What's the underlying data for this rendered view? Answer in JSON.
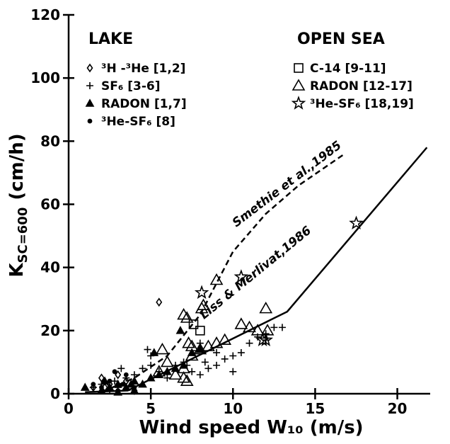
{
  "chart_data": {
    "type": "scatter",
    "x_label": "Wind speed W₁₀ (m/s)",
    "y_label": {
      "main": "K",
      "sub": "SC=600",
      "unit": "(cm/h)"
    },
    "xlim": [
      0,
      22
    ],
    "xticks": [
      0,
      5,
      10,
      15,
      20
    ],
    "ylim": [
      0,
      120
    ],
    "yticks": [
      0,
      20,
      40,
      60,
      80,
      100,
      120
    ],
    "legend_groups": [
      {
        "title": "LAKE"
      },
      {
        "title": "OPEN SEA"
      }
    ],
    "series": [
      {
        "name": "³H -³He [1,2]",
        "group": 0,
        "marker": "diamond",
        "color": "#000000",
        "x": [
          5.5,
          2,
          2.5,
          3,
          1.5,
          4,
          3.5,
          2.2
        ],
        "values": [
          29,
          5,
          3,
          6,
          2,
          1,
          4,
          2
        ]
      },
      {
        "name": "SF₆ [3-6]",
        "group": 0,
        "marker": "plus",
        "color": "#000000",
        "x": [
          1.5,
          2,
          2.5,
          3,
          3.5,
          4,
          4.5,
          5,
          5.5,
          6,
          6.5,
          7,
          7.5,
          8,
          8.5,
          9,
          9.5,
          10,
          10.5,
          11,
          11.5,
          12,
          12.5,
          13,
          12,
          8,
          9,
          5,
          4.8,
          3.2,
          2.8,
          7.2,
          8.3,
          10
        ],
        "values": [
          2,
          3,
          1,
          2,
          5,
          6,
          8,
          9,
          7,
          5,
          9,
          10,
          7,
          6,
          8,
          9,
          11,
          12,
          13,
          16,
          18,
          19,
          21,
          21,
          17,
          16,
          13,
          12,
          14,
          8,
          4,
          9,
          10,
          7
        ]
      },
      {
        "name": "RADON [1,7]",
        "group": 0,
        "marker": "triangle-filled",
        "color": "#000000",
        "x": [
          1,
          2,
          2.5,
          3,
          3.5,
          4,
          4.5,
          5,
          5.5,
          6,
          6.5,
          7,
          7.5,
          8,
          5.2,
          6.8,
          4,
          3,
          2.2,
          3.8
        ],
        "values": [
          2,
          1,
          2,
          3,
          2,
          4,
          3,
          5,
          6,
          7,
          8,
          9,
          13,
          14,
          13,
          20,
          1,
          0.5,
          4,
          3
        ]
      },
      {
        "name": "³He-SF₆ [8]",
        "group": 0,
        "marker": "dot",
        "color": "#000000",
        "x": [
          1.5,
          2,
          2.5,
          3,
          3.5,
          4,
          2.8,
          3.3
        ],
        "values": [
          3,
          2,
          4,
          1,
          6,
          2,
          7,
          3
        ]
      },
      {
        "name": "C-14 [9-11]",
        "group": 1,
        "marker": "square",
        "color": "#000000",
        "x": [
          7.6,
          8
        ],
        "values": [
          22,
          20
        ]
      },
      {
        "name": "RADON [12-17]",
        "group": 1,
        "marker": "triangle",
        "color": "#000000",
        "x": [
          7,
          7.2,
          8.2,
          8.1,
          9,
          7,
          7.2,
          7.5,
          7.3,
          8,
          9,
          10.5,
          11,
          11.5,
          12,
          12.1,
          5.7,
          6.5,
          7,
          5.5,
          6,
          7.5,
          8.5,
          9.5
        ],
        "values": [
          25,
          24,
          28,
          27,
          36,
          5,
          4,
          15,
          16,
          14,
          16,
          22,
          21,
          20,
          27,
          20,
          14,
          6,
          8,
          7,
          10,
          12,
          15,
          17
        ]
      },
      {
        "name": "³He-SF₆ [18,19]",
        "group": 1,
        "marker": "star",
        "color": "#000000",
        "x": [
          8.1,
          10.5,
          11.8,
          12,
          17.5
        ],
        "values": [
          32,
          37,
          17,
          17,
          54
        ]
      },
      {
        "name": "Smethie et al.,1985",
        "line": "dashed",
        "color": "#000000",
        "x": [
          2,
          4,
          6,
          8,
          10,
          12,
          14,
          16.8
        ],
        "values": [
          0.5,
          5,
          12,
          25,
          45,
          57,
          66,
          76
        ]
      },
      {
        "name": "Liss & Merlivat,1986",
        "line": "solid",
        "color": "#000000",
        "x": [
          1,
          3.6,
          13.3,
          21.8
        ],
        "values": [
          0.5,
          1,
          26,
          78
        ]
      }
    ]
  }
}
